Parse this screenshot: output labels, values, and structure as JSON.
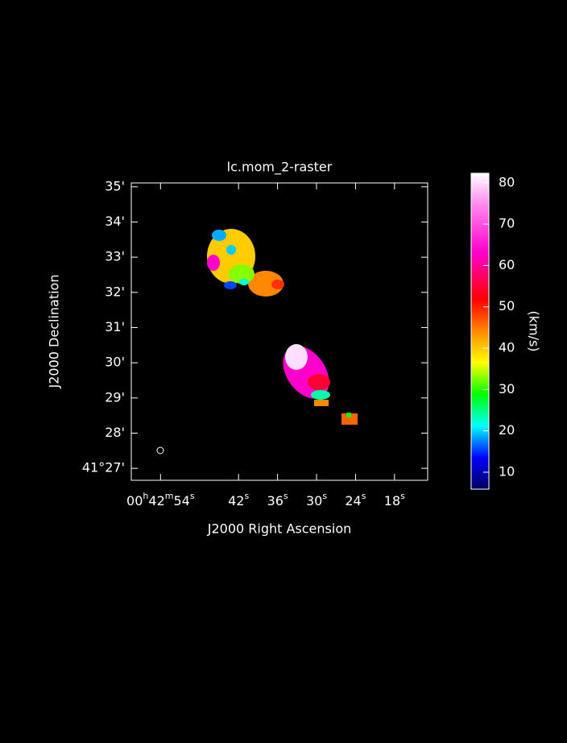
{
  "chart_data": {
    "type": "image",
    "title": "lc.mom_2-raster",
    "xlabel": "J2000 Right Ascension",
    "ylabel": "J2000 Declination",
    "xlim": [
      58.5,
      12.9
    ],
    "xticks": [
      {
        "value": 54,
        "label": "00h42m54s"
      },
      {
        "value": 42,
        "label": "42s"
      },
      {
        "value": 36,
        "label": "36s"
      },
      {
        "value": 30,
        "label": "30s"
      },
      {
        "value": 24,
        "label": "24s"
      },
      {
        "value": 18,
        "label": "18s"
      }
    ],
    "ylim": [
      26.66,
      35.11
    ],
    "yticks": [
      {
        "value": 35,
        "label": "35'"
      },
      {
        "value": 34,
        "label": "34'"
      },
      {
        "value": 33,
        "label": "33'"
      },
      {
        "value": 32,
        "label": "32'"
      },
      {
        "value": 31,
        "label": "31'"
      },
      {
        "value": 30,
        "label": "30'"
      },
      {
        "value": 29,
        "label": "29'"
      },
      {
        "value": 28,
        "label": "28'"
      },
      {
        "value": 27,
        "label": "41°27'"
      }
    ],
    "colorbar": {
      "label": "(km/s)",
      "lim": [
        5.9,
        82.3
      ],
      "ticks": [
        10,
        20,
        30,
        40,
        50,
        60,
        70,
        80
      ]
    }
  }
}
